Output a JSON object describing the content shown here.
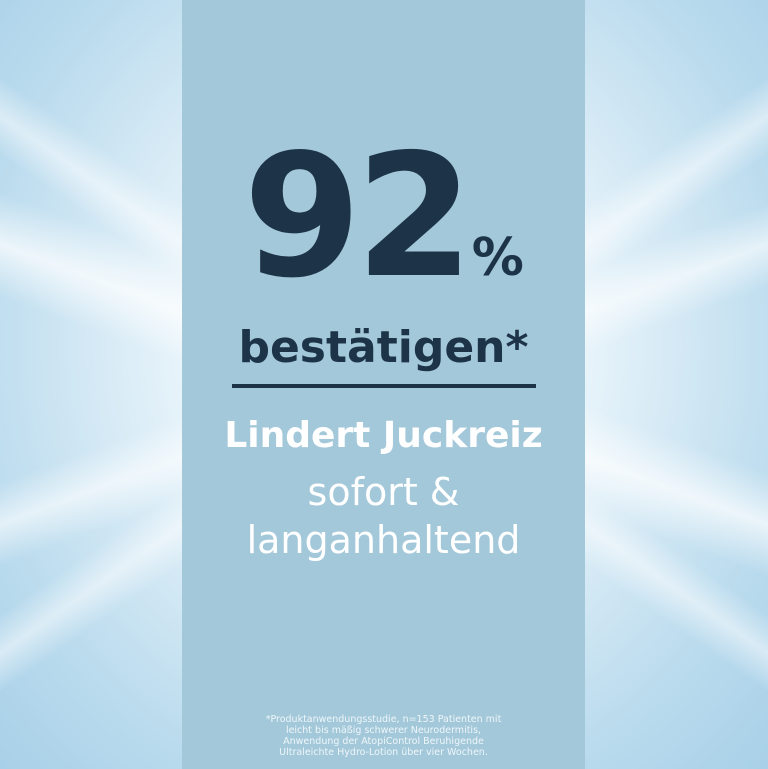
{
  "headline": {
    "number": "92",
    "percent": "%",
    "subline": "bestätigen*"
  },
  "claim": {
    "title": "Lindert Juckreiz",
    "line1": "sofort &",
    "line2": "langanhaltend"
  },
  "footnote": [
    "*Produktanwendungsstudie, n=153 Patienten mit",
    "leicht bis mäßig schwerer Neurodermitis,",
    "Anwendung der AtopiControl Beruhigende",
    "Ultraleichte Hydro-Lotion über vier Wochen."
  ],
  "colors": {
    "panel": "#a3c8d9",
    "text_dark": "#1d3347",
    "text_light": "#ffffff"
  }
}
